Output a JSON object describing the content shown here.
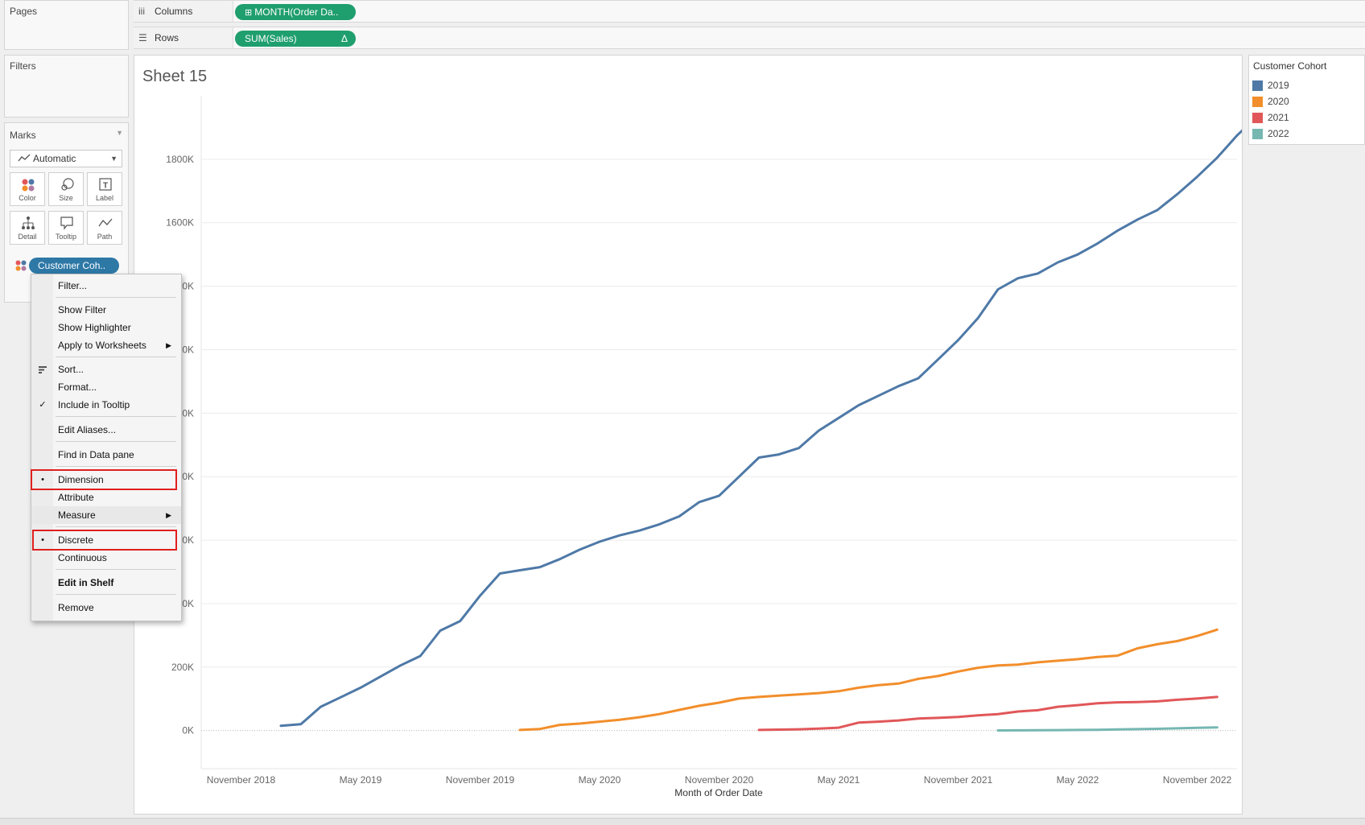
{
  "shelves": {
    "pages_label": "Pages",
    "filters_label": "Filters",
    "columns": {
      "label": "Columns",
      "icon": "columns-icon",
      "pill": "MONTH(Order Da..",
      "pill_color": "#1f9e6e"
    },
    "rows": {
      "label": "Rows",
      "icon": "rows-icon",
      "pill": "SUM(Sales)",
      "pill_delta": "Δ",
      "pill_color": "#1f9e6e"
    }
  },
  "marks": {
    "title": "Marks",
    "mark_type": "Automatic",
    "buttons": [
      {
        "label": "Color",
        "icon": "color-icon"
      },
      {
        "label": "Size",
        "icon": "size-icon"
      },
      {
        "label": "Label",
        "icon": "label-icon"
      },
      {
        "label": "Detail",
        "icon": "detail-icon"
      },
      {
        "label": "Tooltip",
        "icon": "tooltip-icon"
      },
      {
        "label": "Path",
        "icon": "path-icon"
      }
    ],
    "field_pill": "Customer Coh..",
    "field_pill_color": "#2e78a6"
  },
  "context_menu": {
    "items": [
      {
        "label": "Filter..."
      },
      {
        "label": "Show Filter"
      },
      {
        "label": "Show Highlighter"
      },
      {
        "label": "Apply to Worksheets",
        "submenu": true
      },
      {
        "label": "Sort...",
        "icon": "sort-icon"
      },
      {
        "label": "Format..."
      },
      {
        "label": "Include in Tooltip",
        "checked": true
      },
      {
        "label": "Edit Aliases..."
      },
      {
        "label": "Find in Data pane"
      },
      {
        "label": "Dimension",
        "selected": true,
        "highlighted": true
      },
      {
        "label": "Attribute"
      },
      {
        "label": "Measure",
        "submenu": true
      },
      {
        "label": "Discrete",
        "selected": true,
        "highlighted": true
      },
      {
        "label": "Continuous"
      },
      {
        "label": "Edit in Shelf",
        "bold": true
      },
      {
        "label": "Remove"
      }
    ],
    "highlight_color": "#e01f1f"
  },
  "sheet": {
    "title": "Sheet 15"
  },
  "legend": {
    "title": "Customer Cohort",
    "items": [
      {
        "label": "2019",
        "color": "#4e79a7"
      },
      {
        "label": "2020",
        "color": "#f28e2b"
      },
      {
        "label": "2021",
        "color": "#e15759"
      },
      {
        "label": "2022",
        "color": "#76b7b2"
      }
    ]
  },
  "chart_data": {
    "type": "line",
    "title": "Sheet 15",
    "xlabel": "Month of Order Date",
    "ylabel": "",
    "x_tick_labels": [
      "November 2018",
      "May 2019",
      "November 2019",
      "May 2020",
      "November 2020",
      "May 2021",
      "November 2021",
      "May 2022",
      "November 2022"
    ],
    "y_tick_labels": [
      "0K",
      "200K",
      "400K",
      "600K",
      "800K",
      "1000K",
      "1200K",
      "1400K",
      "1600K",
      "1800K"
    ],
    "x_range": [
      "2018-09",
      "2023-01"
    ],
    "ylim": [
      -120000,
      2000000
    ],
    "grid": "horizontal",
    "legend_position": "right",
    "series": [
      {
        "name": "2019",
        "color": "#4e79a7",
        "start": "2019-01",
        "values": [
          15000,
          20000,
          75000,
          105000,
          135000,
          170000,
          205000,
          235000,
          315000,
          345000,
          425000,
          495000,
          505000,
          515000,
          540000,
          570000,
          595000,
          615000,
          630000,
          650000,
          675000,
          720000,
          740000,
          800000,
          860000,
          870000,
          890000,
          945000,
          985000,
          1025000,
          1055000,
          1085000,
          1110000,
          1170000,
          1230000,
          1300000,
          1390000,
          1425000,
          1440000,
          1475000,
          1500000,
          1535000,
          1575000,
          1610000,
          1640000,
          1690000,
          1745000,
          1805000,
          1875000,
          1935000
        ]
      },
      {
        "name": "2020",
        "color": "#f28e2b",
        "start": "2020-01",
        "values": [
          2000,
          5000,
          18000,
          22000,
          28000,
          34000,
          42000,
          52000,
          65000,
          78000,
          88000,
          101000,
          106000,
          110000,
          114000,
          118000,
          124000,
          135000,
          143000,
          148000,
          163000,
          172000,
          186000,
          198000,
          205000,
          208000,
          215000,
          220000,
          225000,
          232000,
          236000,
          259000,
          272000,
          282000,
          298000,
          318000
        ]
      },
      {
        "name": "2021",
        "color": "#e15759",
        "start": "2021-01",
        "values": [
          2000,
          3000,
          4000,
          6000,
          9000,
          25000,
          28000,
          32000,
          38000,
          40000,
          43000,
          48000,
          52000,
          60000,
          64000,
          75000,
          80000,
          86000,
          89000,
          90000,
          92000,
          97000,
          101000,
          106000
        ]
      },
      {
        "name": "2022",
        "color": "#76b7b2",
        "start": "2022-01",
        "values": [
          500,
          800,
          1000,
          1500,
          2000,
          2500,
          3500,
          4500,
          5500,
          7000,
          8500,
          10000
        ]
      }
    ]
  }
}
